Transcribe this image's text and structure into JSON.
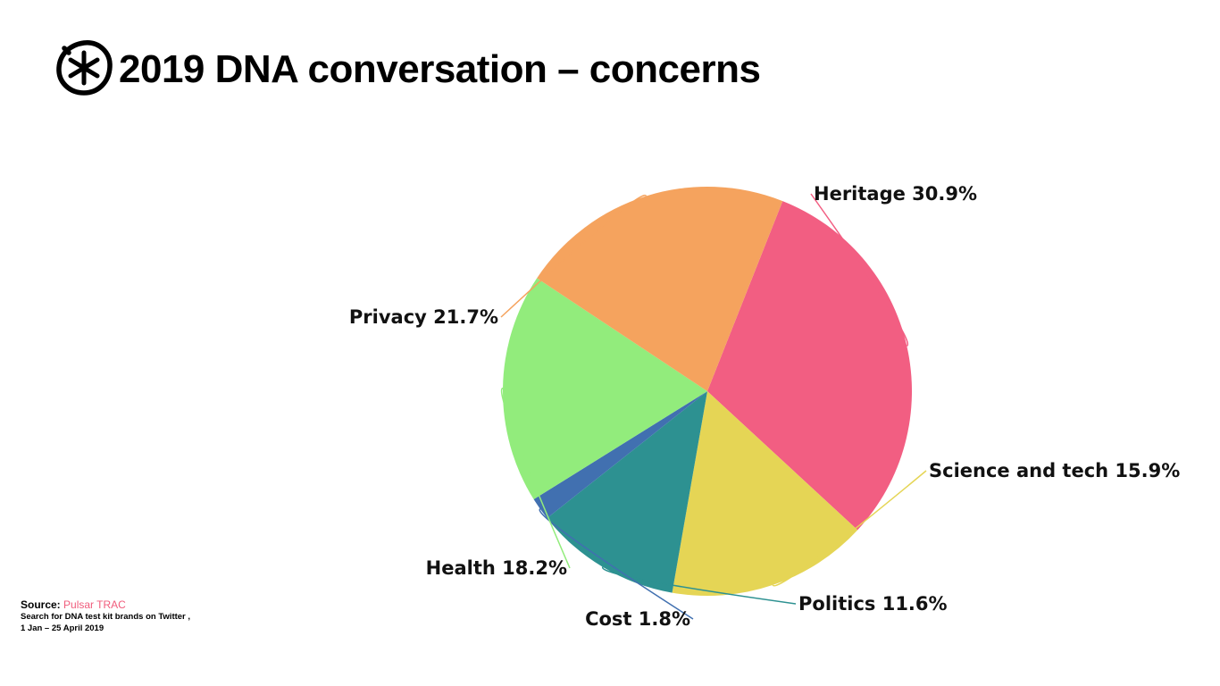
{
  "header": {
    "title": "2019 DNA conversation – concerns",
    "logo_icon": "asterisk-circle-logo"
  },
  "chart_data": {
    "type": "pie",
    "title": "2019 DNA conversation – concerns",
    "slices": [
      {
        "label": "Heritage",
        "value": 30.9,
        "display": "Heritage 30.9%",
        "color": "#f25e82"
      },
      {
        "label": "Science and tech",
        "value": 15.9,
        "display": "Science and tech 15.9%",
        "color": "#e5d555"
      },
      {
        "label": "Politics",
        "value": 11.6,
        "display": "Politics 11.6%",
        "color": "#2d9191"
      },
      {
        "label": "Cost",
        "value": 1.8,
        "display": "Cost 1.8%",
        "color": "#4170b0"
      },
      {
        "label": "Health",
        "value": 18.2,
        "display": "Health 18.2%",
        "color": "#92ec7c"
      },
      {
        "label": "Privacy",
        "value": 21.7,
        "display": "Privacy 21.7%",
        "color": "#f5a35e"
      }
    ],
    "start_angle_deg": 21.6,
    "direction": "clockwise",
    "label_placement": "outside-with-leader-lines",
    "legend": "none"
  },
  "footer": {
    "source_label": "Source:",
    "source_name": "Pulsar TRAC",
    "note_line1": "Search for DNA test kit brands on Twitter ,",
    "note_line2": "1 Jan – 25 April 2019"
  },
  "colors": {
    "source_accent": "#f05c7c",
    "text": "#000000"
  }
}
